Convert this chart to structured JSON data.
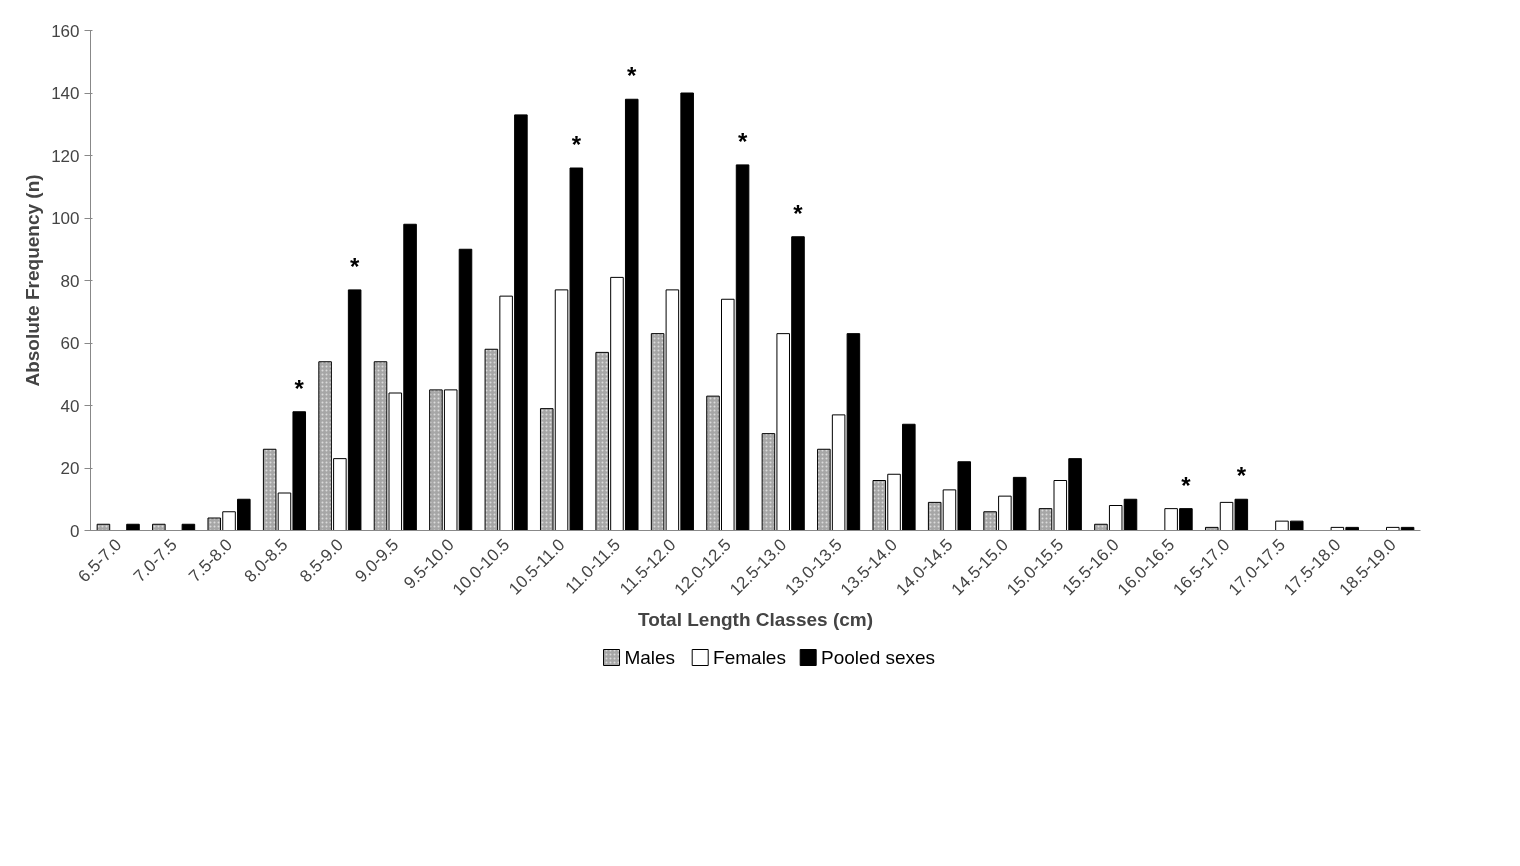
{
  "chart_data": {
    "type": "bar",
    "xlabel": "Total Length Classes (cm)",
    "ylabel": "Absolute Frequency (n)",
    "categories": [
      "6.5-7.0",
      "7.0-7.5",
      "7.5-8.0",
      "8.0-8.5",
      "8.5-9.0",
      "9.0-9.5",
      "9.5-10.0",
      "10.0-10.5",
      "10.5-11.0",
      "11.0-11.5",
      "11.5-12.0",
      "12.0-12.5",
      "12.5-13.0",
      "13.0-13.5",
      "13.5-14.0",
      "14.0-14.5",
      "14.5-15.0",
      "15.0-15.5",
      "15.5-16.0",
      "16.0-16.5",
      "16.5-17.0",
      "17.0-17.5",
      "17.5-18.0",
      "18.5-19.0"
    ],
    "series": [
      {
        "name": "Males",
        "color": "#a6a6a6",
        "values": [
          2,
          2,
          4,
          26,
          54,
          54,
          45,
          58,
          39,
          57,
          63,
          43,
          31,
          26,
          16,
          9,
          6,
          7,
          2,
          0,
          1,
          0,
          0,
          0
        ]
      },
      {
        "name": "Females",
        "color": "#ffffff",
        "values": [
          0,
          0,
          6,
          12,
          23,
          44,
          45,
          75,
          77,
          81,
          77,
          74,
          63,
          37,
          18,
          13,
          11,
          16,
          8,
          7,
          9,
          3,
          1,
          1
        ]
      },
      {
        "name": "Pooled sexes",
        "color": "#000000",
        "values": [
          2,
          2,
          10,
          38,
          77,
          98,
          90,
          133,
          116,
          138,
          140,
          117,
          94,
          63,
          34,
          22,
          17,
          23,
          10,
          7,
          10,
          3,
          1,
          1
        ],
        "value_labels": [
          null,
          null,
          null,
          "*",
          "*",
          null,
          null,
          null,
          "*",
          "*",
          null,
          "*",
          "*",
          null,
          null,
          null,
          null,
          null,
          null,
          "*",
          "*",
          null,
          null,
          null
        ]
      }
    ],
    "ylim": [
      0,
      160
    ],
    "yticks": [
      0,
      20,
      40,
      60,
      80,
      100,
      120,
      140,
      160
    ],
    "grid": false,
    "legend": "bottom"
  }
}
